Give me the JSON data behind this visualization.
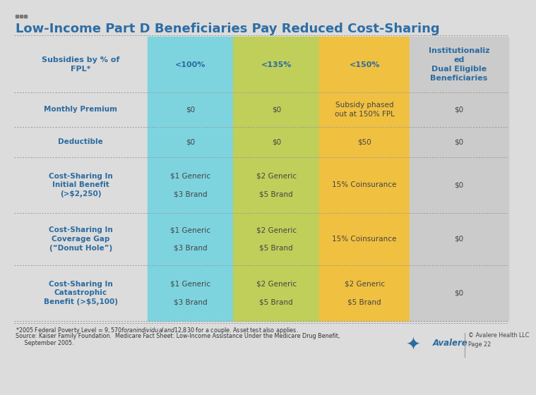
{
  "title": "Low-Income Part D Beneficiaries Pay Reduced Cost-Sharing",
  "title_color": "#2E6DA4",
  "title_fontsize": 13,
  "bg_color": "#DCDCDC",
  "header_row_labels": [
    "Subsidies by % of\nFPL*",
    "<100%",
    "<135%",
    "<150%",
    "Institutionaliz\ned\nDual Eligible\nBeneficiaries"
  ],
  "col_colors": [
    "#DCDCDC",
    "#7DD4DF",
    "#BFCF5A",
    "#F0C040",
    "#CBCBCB"
  ],
  "header_text_color": "#2B6BA0",
  "rows": [
    {
      "label": "Monthly Premium",
      "col1": "$0",
      "col2": "$0",
      "col3": "Subsidy phased\nout at 150% FPL",
      "col4": "$0"
    },
    {
      "label": "Deductible",
      "col1": "$0",
      "col2": "$0",
      "col3": "$50",
      "col4": "$0"
    },
    {
      "label": "Cost-Sharing In\nInitial Benefit\n(>$2,250)",
      "col1": "$1 Generic\n\n$3 Brand",
      "col2": "$2 Generic\n\n$5 Brand",
      "col3": "15% Coinsurance",
      "col4": "$0"
    },
    {
      "label": "Cost-Sharing In\nCoverage Gap\n(“Donut Hole”)",
      "col1": "$1 Generic\n\n$3 Brand",
      "col2": "$2 Generic\n\n$5 Brand",
      "col3": "15% Coinsurance",
      "col4": "$0"
    },
    {
      "label": "Cost-Sharing In\nCatastrophic\nBenefit (>$5,100)",
      "col1": "$1 Generic\n\n$3 Brand",
      "col2": "$2 Generic\n\n$5 Brand",
      "col3": "$2 Generic\n\n$5 Brand",
      "col4": "$0"
    }
  ],
  "footnote1": "*2005 Federal Poverty Level = $9,570 for an individual and $12,830 for a couple. Asset test also applies.",
  "footnote2": "Source: Kaiser Family Foundation.  Medicare Fact Sheet: Low-Income Assistance Under the Medicare Drug Benefit,",
  "footnote3": "     September 2005.",
  "page_note": "© Avalere Health LLC\nPage 22",
  "dots_color": "#999999",
  "label_text_color": "#2B6BA0",
  "cell_text_color": "#444444"
}
